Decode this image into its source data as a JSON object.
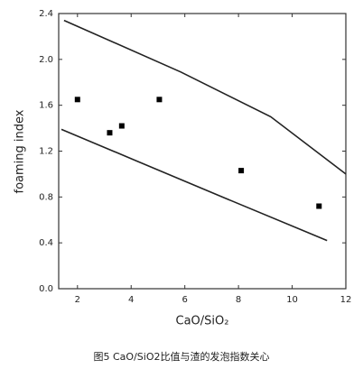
{
  "chart_data": {
    "type": "scatter",
    "xlabel": "CaO/SiO₂",
    "ylabel": "foaming index",
    "caption": "图5 CaO/SiO2比值与渣的发泡指数关心",
    "xlim": [
      1.3,
      12
    ],
    "xticks": [
      2,
      4,
      6,
      8,
      10,
      12
    ],
    "ylim": [
      0,
      2.4
    ],
    "yticks": [
      {
        "value": 0,
        "label": "0.0"
      },
      {
        "value": 0.4,
        "label": "0.4"
      },
      {
        "value": 0.8,
        "label": "0.8"
      },
      {
        "value": 1.2,
        "label": "1.2"
      },
      {
        "value": 1.6,
        "label": "1.6"
      },
      {
        "value": 2.0,
        "label": "2.0"
      },
      {
        "value": 2.4,
        "label": "2.4"
      }
    ],
    "series": [
      {
        "type": "scatter",
        "color": "#000000",
        "x": [
          2.0,
          3.2,
          3.65,
          5.05,
          8.1,
          11.0
        ],
        "values": [
          1.65,
          1.36,
          1.42,
          1.65,
          1.03,
          0.72
        ]
      },
      {
        "type": "line",
        "color": "#222222",
        "x": [
          1.5,
          5.85,
          9.2,
          12
        ],
        "values": [
          2.34,
          1.89,
          1.5,
          1.0
        ]
      },
      {
        "type": "line",
        "color": "#222222",
        "x": [
          1.4,
          4.15,
          7.5,
          11.3
        ],
        "values": [
          1.39,
          1.12,
          0.79,
          0.42
        ]
      }
    ]
  }
}
